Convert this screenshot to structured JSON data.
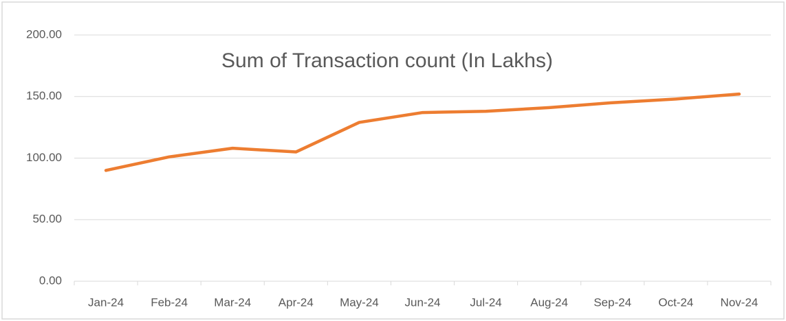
{
  "chart_data": {
    "type": "line",
    "title": "Sum of Transaction count (In Lakhs)",
    "categories": [
      "Jan-24",
      "Feb-24",
      "Mar-24",
      "Apr-24",
      "May-24",
      "Jun-24",
      "Jul-24",
      "Aug-24",
      "Sep-24",
      "Oct-24",
      "Nov-24"
    ],
    "series": [
      {
        "name": "Sum of Transaction count (In Lakhs)",
        "color": "#ed7d31",
        "values": [
          90,
          101,
          108,
          105,
          129,
          137,
          138,
          141,
          145,
          148,
          152
        ]
      }
    ],
    "ylim": [
      0,
      200
    ],
    "yticks": [
      {
        "value": 0,
        "label": "0.00"
      },
      {
        "value": 50,
        "label": "50.00"
      },
      {
        "value": 100,
        "label": "100.00"
      },
      {
        "value": 150,
        "label": "150.00"
      },
      {
        "value": 200,
        "label": "200.00"
      }
    ],
    "grid": true
  }
}
